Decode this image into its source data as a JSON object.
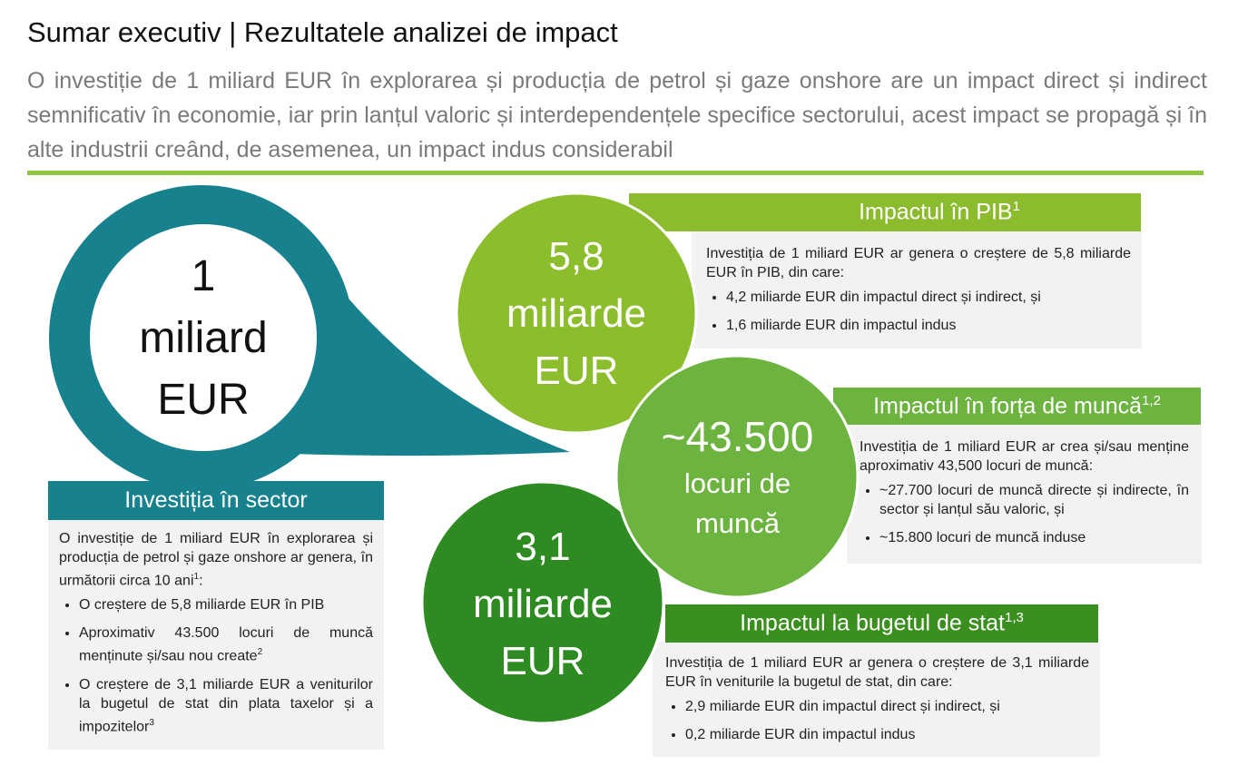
{
  "header": {
    "title": "Sumar executiv | Rezultatele analizei de impact",
    "subtitle": "O investiție de 1 miliard EUR în explorarea și producția de petrol și gaze onshore are un impact direct și indirect semnificativ în economie, iar prin lanțul valoric și interdependențele specifice sectorului, acest impact se propagă și în alte industrii creând, de asemenea, un impact indus considerabil"
  },
  "investment": {
    "bubble": [
      "1",
      "miliard",
      "EUR"
    ],
    "title": "Investiția în sector",
    "intro": {
      "text": "O investiție de 1 miliard EUR în explorarea și producția de petrol și gaze onshore ar genera, în următorii circa 10 ani",
      "sup": "1",
      "tail": ":"
    },
    "bullets": [
      {
        "text": "O creștere de 5,8 miliarde EUR în PIB"
      },
      {
        "text": "Aproximativ 43.500 locuri de muncă menținute și/sau nou create",
        "sup": "2"
      },
      {
        "text": "O creștere de 3,1 miliarde EUR a veniturilor la bugetul de stat din plata taxelor și a impozitelor",
        "sup": "3"
      }
    ]
  },
  "gdp": {
    "circle": [
      "5,8",
      "miliarde",
      "EUR"
    ],
    "title": "Impactul în PIB",
    "sup": "1",
    "intro": "Investiția de 1 miliard EUR ar genera o creștere de 5,8 miliarde EUR în PIB, din care:",
    "bullets": [
      {
        "text": "4,2 miliarde EUR din impactul direct și indirect, și"
      },
      {
        "text": "1,6 miliarde EUR din impactul indus"
      }
    ]
  },
  "jobs": {
    "circle": [
      "~43.500",
      "locuri de",
      "muncă"
    ],
    "title": "Impactul în forța de muncă",
    "sup": "1,2",
    "intro": "Investiția de 1 miliard EUR ar crea și/sau menține aproximativ 43,500 locuri de muncă:",
    "bullets": [
      {
        "text": "~27.700 locuri de muncă directe și indirecte, în sector și lanțul său valoric, și"
      },
      {
        "text": "~15.800 locuri de muncă induse"
      }
    ]
  },
  "budget": {
    "circle": [
      "3,1",
      "miliarde",
      "EUR"
    ],
    "title": "Impactul la bugetul de stat",
    "sup": "1,3",
    "intro": "Investiția de 1 miliard EUR ar genera o creștere de 3,1 miliarde EUR în veniturile la bugetul de stat, din care:",
    "bullets": [
      {
        "text": "2,9 miliarde EUR din impactul direct și indirect, și"
      },
      {
        "text": "0,2 miliarde EUR din impactul indus"
      }
    ]
  }
}
